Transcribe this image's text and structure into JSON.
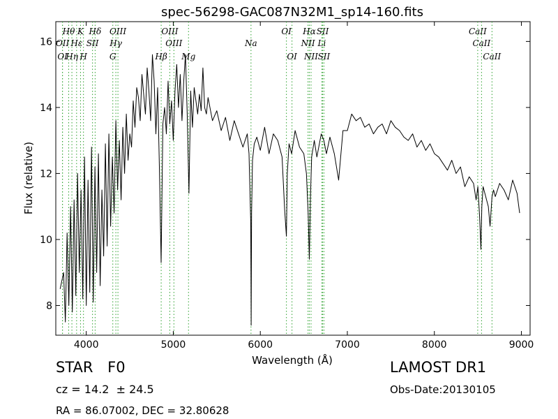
{
  "chart_data": {
    "type": "line",
    "title": "spec-56298-GAC087N32M1_sp14-160.fits",
    "xlabel": "Wavelength (Å)",
    "ylabel": "Flux (relative)",
    "xlim": [
      3650,
      9100
    ],
    "ylim": [
      7.1,
      16.6
    ],
    "xticks": [
      4000,
      5000,
      6000,
      7000,
      8000,
      9000
    ],
    "yticks": [
      8,
      10,
      12,
      14,
      16
    ],
    "grid": false,
    "line_color": "#000000",
    "marker_color": "#2ca02c",
    "series": [
      {
        "x": [
          3700,
          3740,
          3760,
          3780,
          3800,
          3820,
          3840,
          3860,
          3880,
          3900,
          3920,
          3940,
          3960,
          3980,
          4000,
          4020,
          4040,
          4060,
          4080,
          4100,
          4120,
          4140,
          4160,
          4180,
          4200,
          4220,
          4240,
          4260,
          4280,
          4300,
          4320,
          4340,
          4360,
          4380,
          4400,
          4420,
          4440,
          4460,
          4480,
          4500,
          4520,
          4540,
          4560,
          4580,
          4600,
          4620,
          4640,
          4660,
          4680,
          4700,
          4720,
          4740,
          4760,
          4780,
          4800,
          4820,
          4840,
          4860,
          4880,
          4900,
          4920,
          4940,
          4960,
          4980,
          5000,
          5020,
          5040,
          5060,
          5080,
          5100,
          5120,
          5140,
          5160,
          5180,
          5200,
          5220,
          5240,
          5260,
          5280,
          5300,
          5320,
          5340,
          5360,
          5380,
          5400,
          5450,
          5500,
          5550,
          5600,
          5650,
          5700,
          5750,
          5800,
          5850,
          5870,
          5890,
          5895,
          5900,
          5910,
          5930,
          5960,
          6000,
          6050,
          6100,
          6150,
          6200,
          6250,
          6280,
          6300,
          6310,
          6330,
          6360,
          6400,
          6450,
          6500,
          6530,
          6550,
          6563,
          6575,
          6590,
          6620,
          6650,
          6700,
          6730,
          6760,
          6800,
          6850,
          6900,
          6950,
          7000,
          7050,
          7100,
          7150,
          7200,
          7250,
          7300,
          7350,
          7400,
          7450,
          7500,
          7550,
          7600,
          7650,
          7700,
          7750,
          7800,
          7850,
          7900,
          7950,
          8000,
          8050,
          8100,
          8150,
          8200,
          8250,
          8300,
          8350,
          8400,
          8450,
          8480,
          8500,
          8520,
          8535,
          8545,
          8560,
          8580,
          8620,
          8640,
          8662,
          8680,
          8700,
          8750,
          8800,
          8850,
          8900,
          8950,
          8980
        ],
        "y": [
          8.5,
          9.0,
          7.5,
          10.2,
          8.0,
          11.0,
          7.8,
          11.2,
          8.3,
          12.0,
          9.0,
          11.5,
          8.2,
          12.5,
          8.0,
          11.8,
          8.4,
          12.8,
          8.1,
          12.2,
          9.0,
          12.6,
          8.6,
          11.5,
          9.5,
          12.9,
          9.8,
          13.2,
          10.4,
          12.5,
          10.8,
          13.6,
          11.5,
          13.0,
          11.2,
          13.4,
          12.0,
          13.8,
          12.4,
          13.2,
          12.8,
          14.2,
          13.4,
          14.6,
          14.3,
          13.6,
          15.0,
          14.4,
          13.8,
          15.2,
          14.5,
          13.6,
          15.6,
          14.8,
          13.2,
          14.6,
          12.2,
          9.3,
          13.5,
          14.0,
          13.2,
          14.8,
          13.5,
          14.2,
          13.0,
          14.5,
          15.3,
          14.0,
          15.0,
          13.6,
          14.8,
          15.6,
          13.8,
          11.4,
          14.5,
          13.4,
          14.6,
          14.2,
          13.8,
          14.4,
          13.9,
          15.2,
          14.0,
          13.8,
          14.3,
          13.6,
          13.9,
          13.3,
          13.7,
          13.0,
          13.6,
          13.2,
          12.8,
          13.2,
          12.6,
          10.5,
          7.4,
          10.8,
          12.4,
          12.9,
          13.1,
          12.7,
          13.4,
          12.6,
          13.2,
          13.0,
          12.5,
          10.9,
          10.1,
          12.0,
          12.9,
          12.6,
          13.3,
          12.8,
          12.6,
          12.0,
          10.8,
          9.4,
          11.2,
          12.5,
          13.0,
          12.5,
          13.2,
          13.0,
          12.6,
          13.1,
          12.6,
          11.8,
          13.3,
          13.3,
          13.8,
          13.6,
          13.7,
          13.4,
          13.5,
          13.2,
          13.4,
          13.5,
          13.2,
          13.6,
          13.4,
          13.3,
          13.1,
          13.0,
          13.2,
          12.8,
          13.0,
          12.7,
          12.9,
          12.6,
          12.5,
          12.3,
          12.1,
          12.4,
          12.0,
          12.2,
          11.6,
          11.9,
          11.7,
          11.2,
          11.6,
          10.7,
          9.7,
          11.0,
          11.6,
          11.4,
          11.0,
          10.4,
          11.3,
          11.5,
          11.3,
          11.7,
          11.5,
          11.2,
          11.8,
          11.4,
          10.8
        ]
      }
    ],
    "lines": [
      {
        "name": "Hθ",
        "x": 3798,
        "row": 1
      },
      {
        "name": "K",
        "x": 3934,
        "row": 1
      },
      {
        "name": "Hδ",
        "x": 4102,
        "row": 1
      },
      {
        "name": "OIII",
        "x": 4364,
        "row": 1
      },
      {
        "name": "OIII",
        "x": 4960,
        "row": 1
      },
      {
        "name": "OI",
        "x": 6300,
        "row": 1
      },
      {
        "name": "Hα",
        "x": 6563,
        "row": 1
      },
      {
        "name": "SII",
        "x": 6716,
        "row": 1
      },
      {
        "name": "CaII",
        "x": 8498,
        "row": 1
      },
      {
        "name": "OII",
        "x": 3727,
        "row": 2
      },
      {
        "name": "Hε",
        "x": 3889,
        "row": 2
      },
      {
        "name": "SII",
        "x": 4072,
        "row": 2
      },
      {
        "name": "Hγ",
        "x": 4340,
        "row": 2
      },
      {
        "name": "NII",
        "x": 6548,
        "row": 2
      },
      {
        "name": "Li",
        "x": 6707,
        "row": 2
      },
      {
        "name": "CaII",
        "x": 8542,
        "row": 2
      },
      {
        "name": "OI",
        "x": 3727,
        "row": 3
      },
      {
        "name": "Hη",
        "x": 3835,
        "row": 3
      },
      {
        "name": "H",
        "x": 3968,
        "row": 3
      },
      {
        "name": "G",
        "x": 4305,
        "row": 3
      },
      {
        "name": "Hβ",
        "x": 4861,
        "row": 3
      },
      {
        "name": "OIII",
        "x": 5007,
        "row": 2
      },
      {
        "name": "Mg",
        "x": 5175,
        "row": 3
      },
      {
        "name": "Na",
        "x": 5893,
        "row": 2
      },
      {
        "name": "OI",
        "x": 6364,
        "row": 3
      },
      {
        "name": "NII",
        "x": 6583,
        "row": 3
      },
      {
        "name": "SII",
        "x": 6731,
        "row": 3
      },
      {
        "name": "CaII",
        "x": 8662,
        "row": 3
      }
    ]
  },
  "info": {
    "object_class": "STAR",
    "subclass": "F0",
    "redshift": "cz = 14.2  ± 24.5",
    "coords": "RA = 86.07002, DEC = 32.80628",
    "survey": "LAMOST DR1",
    "obs_date": "Obs-Date:20130105"
  }
}
